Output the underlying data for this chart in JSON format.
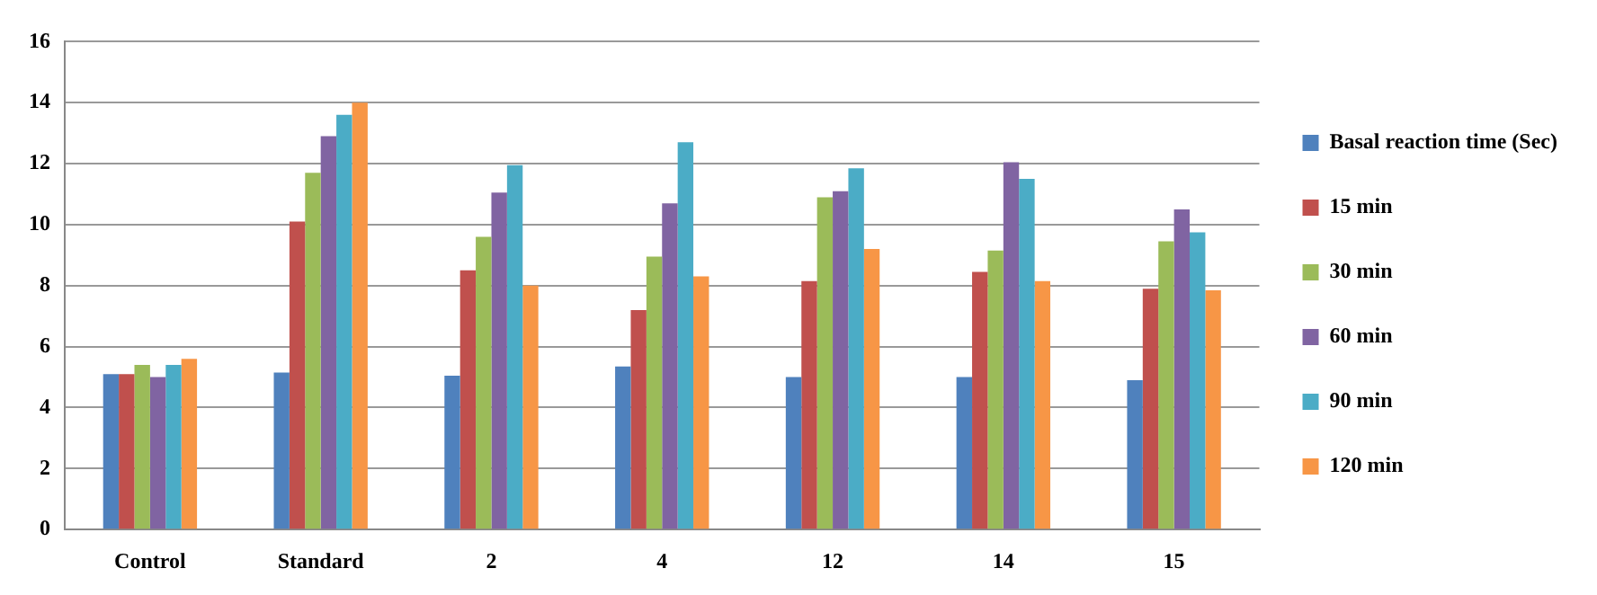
{
  "chart_data": {
    "type": "bar",
    "categories": [
      "Control",
      "Standard",
      "2",
      "4",
      "12",
      "14",
      "15"
    ],
    "series": [
      {
        "name": "Basal reaction time (Sec)",
        "color": "#4f81bd",
        "values": [
          5.1,
          5.15,
          5.05,
          5.35,
          5.0,
          5.0,
          4.9
        ]
      },
      {
        "name": "15 min",
        "color": "#c0504d",
        "values": [
          5.1,
          10.1,
          8.5,
          7.2,
          8.15,
          8.45,
          7.9
        ]
      },
      {
        "name": "30 min",
        "color": "#9bbb59",
        "values": [
          5.4,
          11.7,
          9.6,
          8.95,
          10.9,
          9.15,
          9.45
        ]
      },
      {
        "name": "60 min",
        "color": "#8064a2",
        "values": [
          5.0,
          12.9,
          11.05,
          10.7,
          11.1,
          12.05,
          10.5
        ]
      },
      {
        "name": "90 min",
        "color": "#4bacc6",
        "values": [
          5.4,
          13.6,
          11.95,
          12.7,
          11.85,
          11.5,
          9.75
        ]
      },
      {
        "name": "120 min",
        "color": "#f79646",
        "values": [
          5.6,
          14.0,
          8.0,
          8.3,
          9.2,
          8.15,
          7.85
        ]
      }
    ],
    "ylim": [
      0,
      16
    ],
    "yticks": [
      0,
      2,
      4,
      6,
      8,
      10,
      12,
      14,
      16
    ],
    "grid": "y",
    "legend": "right"
  }
}
